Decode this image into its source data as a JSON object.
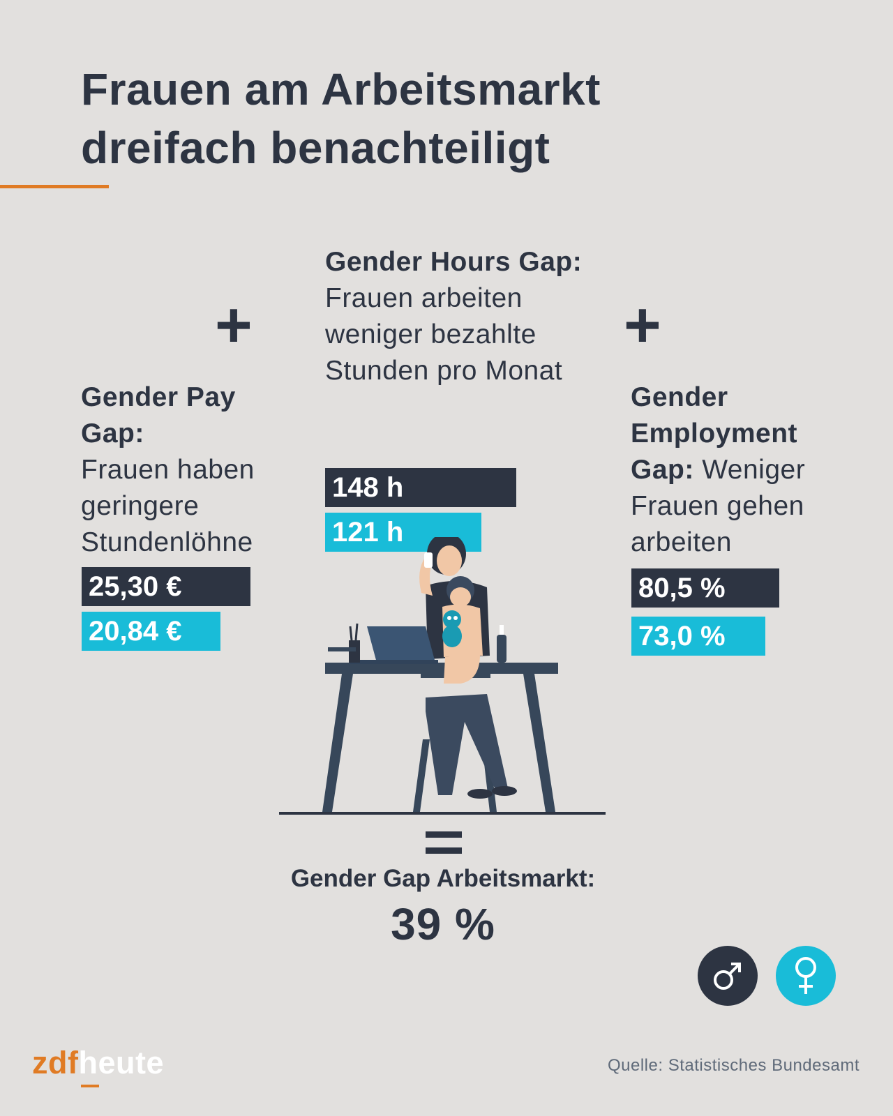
{
  "title_lines": [
    "Frauen am Arbeitsmarkt",
    "dreifach benachteiligt"
  ],
  "colors": {
    "men": "#2d3442",
    "women": "#19bcd8",
    "accent": "#e07b24",
    "background": "#e2e0de"
  },
  "operators": {
    "plus": "+"
  },
  "pay_gap": {
    "heading": "Gender Pay Gap:",
    "text": "Frauen haben geringere Stundenlöhne",
    "men_label": "25,30 €",
    "women_label": "20,84 €"
  },
  "hours_gap": {
    "heading": "Gender Hours Gap:",
    "text": "Frauen arbeiten weniger bezahlte Stunden pro Monat",
    "men_label": "148 h",
    "women_label": "121 h"
  },
  "employment_gap": {
    "heading": "Gender Employment Gap:",
    "text": "Weniger Frauen gehen arbeiten",
    "men_label": "80,5 %",
    "women_label": "73,0 %"
  },
  "total": {
    "label": "Gender Gap Arbeitsmarkt:",
    "value": "39 %"
  },
  "symbols": {
    "male": "male-symbol-icon",
    "female": "female-symbol-icon"
  },
  "brand": {
    "part1": "zdf",
    "part2": "heute"
  },
  "source": "Quelle: Statistisches Bundesamt",
  "chart_data": {
    "type": "bar",
    "orientation": "horizontal",
    "groups": [
      {
        "name": "Gender Pay Gap",
        "men": 25.3,
        "women": 20.84,
        "unit": "€"
      },
      {
        "name": "Gender Hours Gap",
        "men": 148,
        "women": 121,
        "unit": "h"
      },
      {
        "name": "Gender Employment Gap",
        "men": 80.5,
        "women": 73.0,
        "unit": "%"
      }
    ],
    "legend": [
      "male-symbol-icon",
      "female-symbol-icon"
    ],
    "legend_position": "bottom-right",
    "total": 39
  }
}
